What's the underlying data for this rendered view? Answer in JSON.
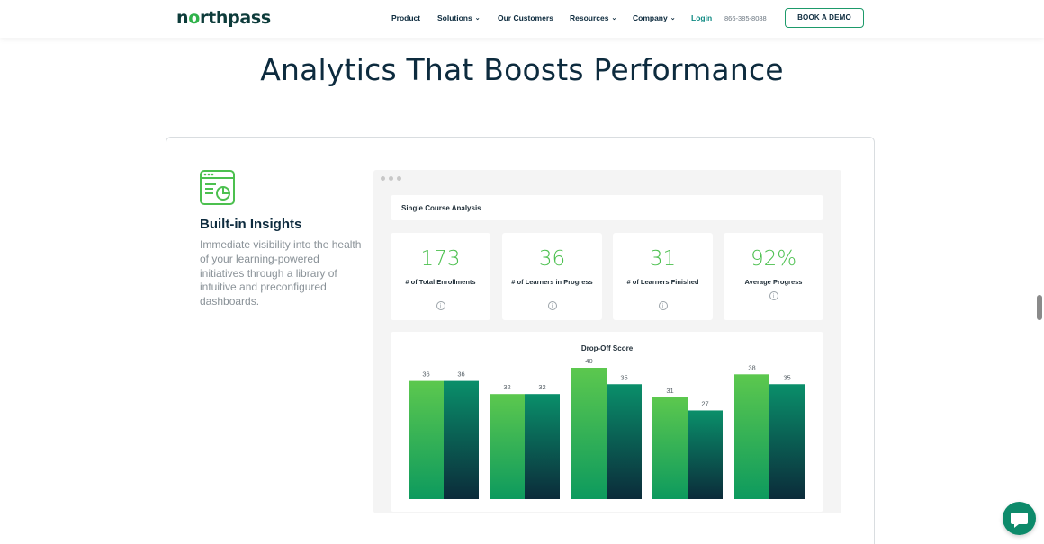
{
  "nav": {
    "logo": {
      "pre": "n",
      "o": "o",
      "post": "rthpass"
    },
    "items": [
      {
        "label": "Product",
        "chevron": false
      },
      {
        "label": "Solutions",
        "chevron": true
      },
      {
        "label": "Our Customers",
        "chevron": false
      },
      {
        "label": "Resources",
        "chevron": true
      },
      {
        "label": "Company",
        "chevron": true
      }
    ],
    "login": "Login",
    "phone": "866-385-8088",
    "demo_button": "BOOK A DEMO"
  },
  "headline": "Analytics That Boosts Performance",
  "insight": {
    "icon": "dashboard-chart-icon",
    "title": "Built-in Insights",
    "body": "Immediate visibility into the health of your learning-powered initiatives through a library of intuitive and preconfigured dashboards."
  },
  "dashboard": {
    "course_title": "Single Course Analysis",
    "stats": [
      {
        "value": "173",
        "label": "# of Total Enrollments"
      },
      {
        "value": "36",
        "label": "# of Learners in Progress"
      },
      {
        "value": "31",
        "label": "# of Learners Finished"
      },
      {
        "value": "92%",
        "label": "Average Progress"
      }
    ],
    "info_glyph": "i"
  },
  "colors": {
    "accent_green": "#4cc04f",
    "teal": "#0d8a6a",
    "navy": "#0d2b3e"
  },
  "chart_data": {
    "type": "bar",
    "title": "Drop-Off Score",
    "categories": [
      "",
      "",
      "",
      "",
      ""
    ],
    "series": [
      {
        "values": [
          36,
          32,
          40,
          31,
          38
        ]
      },
      {
        "values": [
          36,
          32,
          35,
          27,
          35
        ]
      }
    ],
    "ylim": [
      0,
      40
    ],
    "grid": false,
    "legend": "none"
  }
}
